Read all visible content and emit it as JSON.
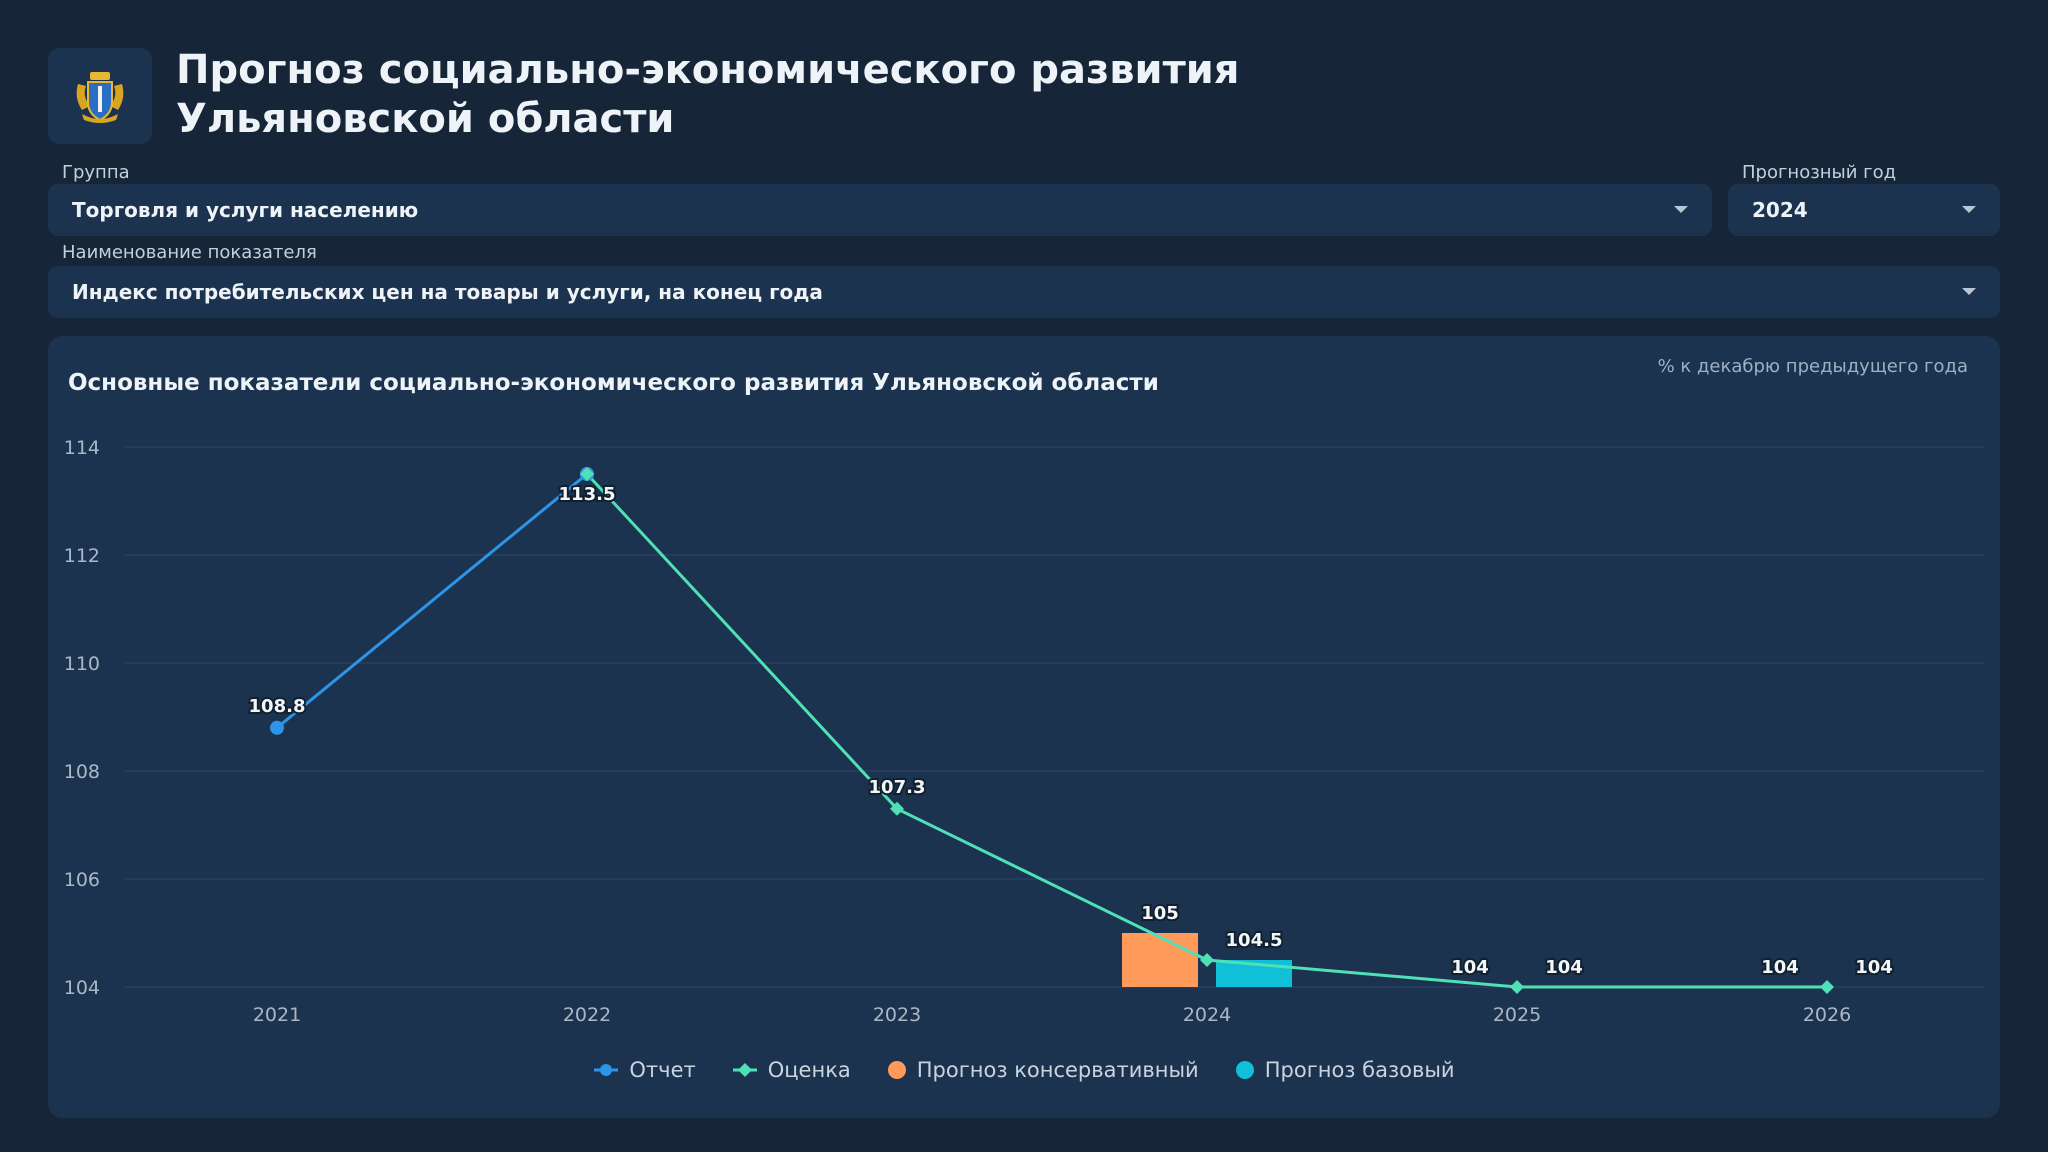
{
  "header": {
    "title_line1": "Прогноз социально-экономического развития",
    "title_line2": "Ульяновской области",
    "logo_icon": "coat-of-arms-icon"
  },
  "filters": {
    "group_label": "Группа",
    "group_value": "Торговля и услуги населению",
    "year_label": "Прогнозный год",
    "year_value": "2024",
    "indicator_label": "Наименование показателя",
    "indicator_value": "Индекс потребительских цен на товары и услуги, на конец года"
  },
  "chart_data": {
    "type": "line",
    "title": "Основные показатели социально-экономического развития Ульяновской области",
    "unit": "% к декабрю предыдущего года",
    "categories": [
      "2021",
      "2022",
      "2023",
      "2024",
      "2025",
      "2026"
    ],
    "ylim": [
      104,
      114
    ],
    "yticks": [
      104,
      106,
      108,
      110,
      112,
      114
    ],
    "grid": true,
    "legend_position": "bottom",
    "series": [
      {
        "name": "Отчет",
        "type": "line",
        "color": "#2d95e8",
        "marker": "circle",
        "values": [
          108.8,
          113.5,
          null,
          null,
          null,
          null
        ]
      },
      {
        "name": "Оценка",
        "type": "line",
        "color": "#4fe0b5",
        "marker": "diamond",
        "values": [
          null,
          113.5,
          107.3,
          104.5,
          104,
          104
        ]
      },
      {
        "name": "Прогноз консервативный",
        "type": "bar",
        "color": "#ff9a5a",
        "values": [
          null,
          null,
          null,
          105,
          104,
          104
        ]
      },
      {
        "name": "Прогноз базовый",
        "type": "bar",
        "color": "#10bfd8",
        "values": [
          null,
          null,
          null,
          104.5,
          104,
          104
        ]
      }
    ],
    "labels": {
      "report": [
        "108.8",
        "113.5",
        "",
        "",
        "",
        ""
      ],
      "estimate": [
        "",
        "",
        "107.3",
        "",
        "",
        ""
      ],
      "conservative": [
        "",
        "",
        "",
        "105",
        "104",
        "104"
      ],
      "base": [
        "",
        "",
        "",
        "104.5",
        "104",
        "104"
      ]
    }
  }
}
